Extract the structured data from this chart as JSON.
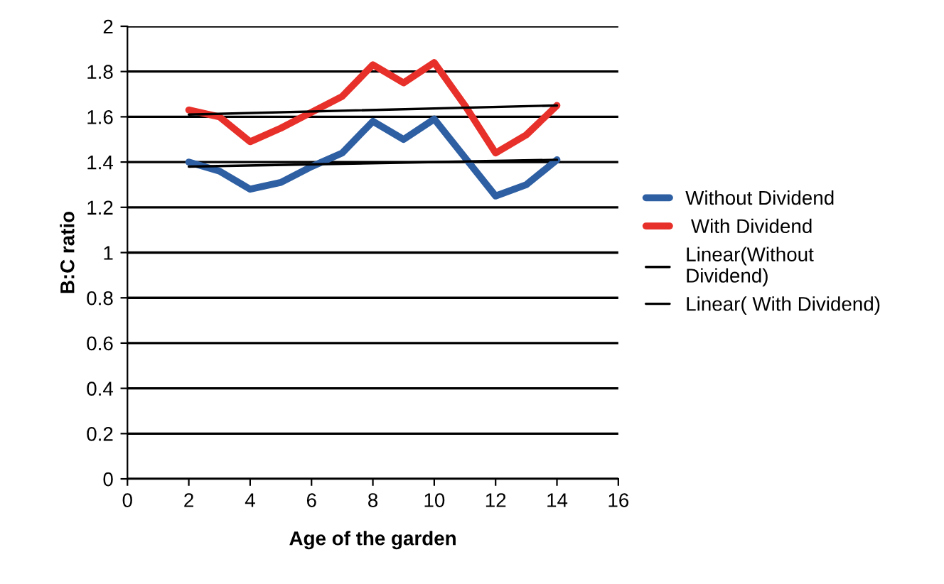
{
  "chart_data": {
    "type": "line",
    "xlabel": "Age of the garden",
    "ylabel": "B:C ratio",
    "series": [
      {
        "name": "Without Dividend",
        "color": "#2e5fa3",
        "x": [
          2,
          3,
          4,
          5,
          6,
          7,
          8,
          9,
          10,
          11,
          12,
          13,
          14
        ],
        "values": [
          1.4,
          1.36,
          1.28,
          1.31,
          1.38,
          1.44,
          1.58,
          1.5,
          1.59,
          1.42,
          1.25,
          1.3,
          1.41
        ]
      },
      {
        "name": " With Dividend",
        "color": "#e8302a",
        "x": [
          2,
          3,
          4,
          5,
          6,
          7,
          8,
          9,
          10,
          11,
          12,
          13,
          14
        ],
        "values": [
          1.63,
          1.6,
          1.49,
          1.55,
          1.62,
          1.69,
          1.83,
          1.75,
          1.84,
          1.65,
          1.44,
          1.52,
          1.65
        ]
      },
      {
        "name": "Linear(Without\nDividend)",
        "color": "#000000",
        "type": "line",
        "x": [
          2,
          14
        ],
        "values": [
          1.38,
          1.41
        ]
      },
      {
        "name": "Linear( With Dividend)",
        "color": "#000000",
        "type": "line",
        "x": [
          2,
          14
        ],
        "values": [
          1.61,
          1.65
        ]
      }
    ],
    "xlim": [
      0,
      16
    ],
    "xticks": [
      0,
      2,
      4,
      6,
      8,
      10,
      12,
      14,
      16
    ],
    "ylim": [
      0,
      2
    ],
    "yticks": [
      0,
      0.2,
      0.4,
      0.6,
      0.8,
      1,
      1.2,
      1.4,
      1.6,
      1.8,
      2
    ],
    "grid": "y",
    "legend": "right",
    "marker": "none",
    "line_style": "solid"
  }
}
